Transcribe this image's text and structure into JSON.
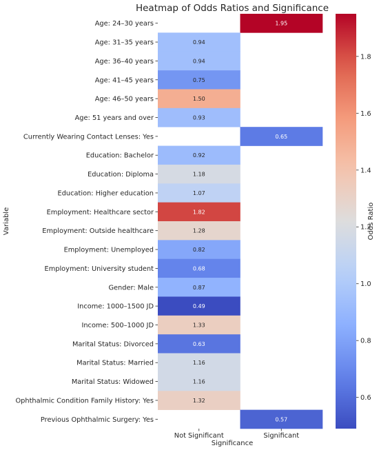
{
  "chart_data": {
    "type": "heatmap",
    "title": "Heatmap of Odds Ratios and Significance",
    "xlabel": "Significance",
    "ylabel": "Variable",
    "columns": [
      "Not Significant",
      "Significant"
    ],
    "rows": [
      {
        "label": "Age: 24–30 years",
        "not_significant": null,
        "significant": 1.95
      },
      {
        "label": "Age: 31–35 years",
        "not_significant": 0.94,
        "significant": null
      },
      {
        "label": "Age: 36–40 years",
        "not_significant": 0.94,
        "significant": null
      },
      {
        "label": "Age: 41–45 years",
        "not_significant": 0.75,
        "significant": null
      },
      {
        "label": "Age: 46–50 years",
        "not_significant": 1.5,
        "significant": null
      },
      {
        "label": "Age: 51 years and over",
        "not_significant": 0.93,
        "significant": null
      },
      {
        "label": "Currently Wearing Contact Lenses: Yes",
        "not_significant": null,
        "significant": 0.65
      },
      {
        "label": "Education: Bachelor",
        "not_significant": 0.92,
        "significant": null
      },
      {
        "label": "Education: Diploma",
        "not_significant": 1.18,
        "significant": null
      },
      {
        "label": "Education: Higher education",
        "not_significant": 1.07,
        "significant": null
      },
      {
        "label": "Employment: Healthcare sector",
        "not_significant": 1.82,
        "significant": null
      },
      {
        "label": "Employment: Outside healthcare",
        "not_significant": 1.28,
        "significant": null
      },
      {
        "label": "Employment: Unemployed",
        "not_significant": 0.82,
        "significant": null
      },
      {
        "label": "Employment: University student",
        "not_significant": 0.68,
        "significant": null
      },
      {
        "label": "Gender: Male",
        "not_significant": 0.87,
        "significant": null
      },
      {
        "label": "Income: 1000–1500 JD",
        "not_significant": 0.49,
        "significant": null
      },
      {
        "label": "Income: 500–1000 JD",
        "not_significant": 1.33,
        "significant": null
      },
      {
        "label": "Marital Status: Divorced",
        "not_significant": 0.63,
        "significant": null
      },
      {
        "label": "Marital Status: Married",
        "not_significant": 1.16,
        "significant": null
      },
      {
        "label": "Marital Status: Widowed",
        "not_significant": 1.16,
        "significant": null
      },
      {
        "label": "Ophthalmic Condition Family History: Yes",
        "not_significant": 1.32,
        "significant": null
      },
      {
        "label": "Previous Ophthalmic Surgery: Yes",
        "not_significant": null,
        "significant": 0.57
      }
    ],
    "colorbar": {
      "label": "Odds Ratio",
      "colormap": "coolwarm",
      "vmin": 0.49,
      "vmax": 1.95,
      "ticks": [
        "0.6",
        "0.8",
        "1.0",
        "1.2",
        "1.4",
        "1.6",
        "1.8"
      ]
    },
    "text_color_dark": "#262626",
    "text_color_light": "#ffffff",
    "grid": false
  }
}
